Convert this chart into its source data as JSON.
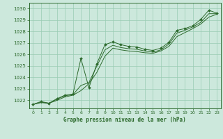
{
  "title": "Graphe pression niveau de la mer (hPa)",
  "background_color": "#cce8dc",
  "grid_color": "#99ccb3",
  "line_color": "#2d6a2d",
  "xlim": [
    -0.5,
    23.5
  ],
  "ylim": [
    1021.3,
    1030.5
  ],
  "yticks": [
    1022,
    1023,
    1024,
    1025,
    1026,
    1027,
    1028,
    1029,
    1030
  ],
  "xticks": [
    0,
    1,
    2,
    3,
    4,
    5,
    6,
    7,
    8,
    9,
    10,
    11,
    12,
    13,
    14,
    15,
    16,
    17,
    18,
    19,
    20,
    21,
    22,
    23
  ],
  "series1_x": [
    0,
    1,
    2,
    3,
    4,
    5,
    6,
    7,
    8,
    9,
    10,
    11,
    12,
    13,
    14,
    15,
    16,
    17,
    18,
    19,
    20,
    21,
    22,
    23
  ],
  "series1_y": [
    1021.65,
    1021.9,
    1021.75,
    1022.15,
    1022.45,
    1022.55,
    1025.65,
    1023.1,
    1025.2,
    1026.85,
    1027.1,
    1026.85,
    1026.7,
    1026.65,
    1026.45,
    1026.35,
    1026.55,
    1027.05,
    1028.1,
    1028.25,
    1028.5,
    1029.05,
    1029.85,
    1029.6
  ],
  "series2_x": [
    0,
    1,
    2,
    3,
    4,
    5,
    6,
    7,
    8,
    9,
    10,
    11,
    12,
    13,
    14,
    15,
    16,
    17,
    18,
    19,
    20,
    21,
    22,
    23
  ],
  "series2_y": [
    1021.65,
    1021.85,
    1021.75,
    1022.1,
    1022.4,
    1022.5,
    1023.3,
    1023.55,
    1025.0,
    1026.4,
    1026.8,
    1026.6,
    1026.5,
    1026.45,
    1026.3,
    1026.2,
    1026.4,
    1026.9,
    1027.85,
    1028.1,
    1028.4,
    1028.8,
    1029.55,
    1029.55
  ],
  "series3_x": [
    0,
    1,
    2,
    3,
    4,
    5,
    6,
    7,
    8,
    9,
    10,
    11,
    12,
    13,
    14,
    15,
    16,
    17,
    18,
    19,
    20,
    21,
    22,
    23
  ],
  "series3_y": [
    1021.65,
    1021.8,
    1021.75,
    1022.0,
    1022.3,
    1022.45,
    1022.85,
    1023.45,
    1024.45,
    1025.85,
    1026.55,
    1026.4,
    1026.3,
    1026.25,
    1026.15,
    1026.1,
    1026.3,
    1026.7,
    1027.55,
    1027.9,
    1028.25,
    1028.65,
    1029.25,
    1029.5
  ]
}
